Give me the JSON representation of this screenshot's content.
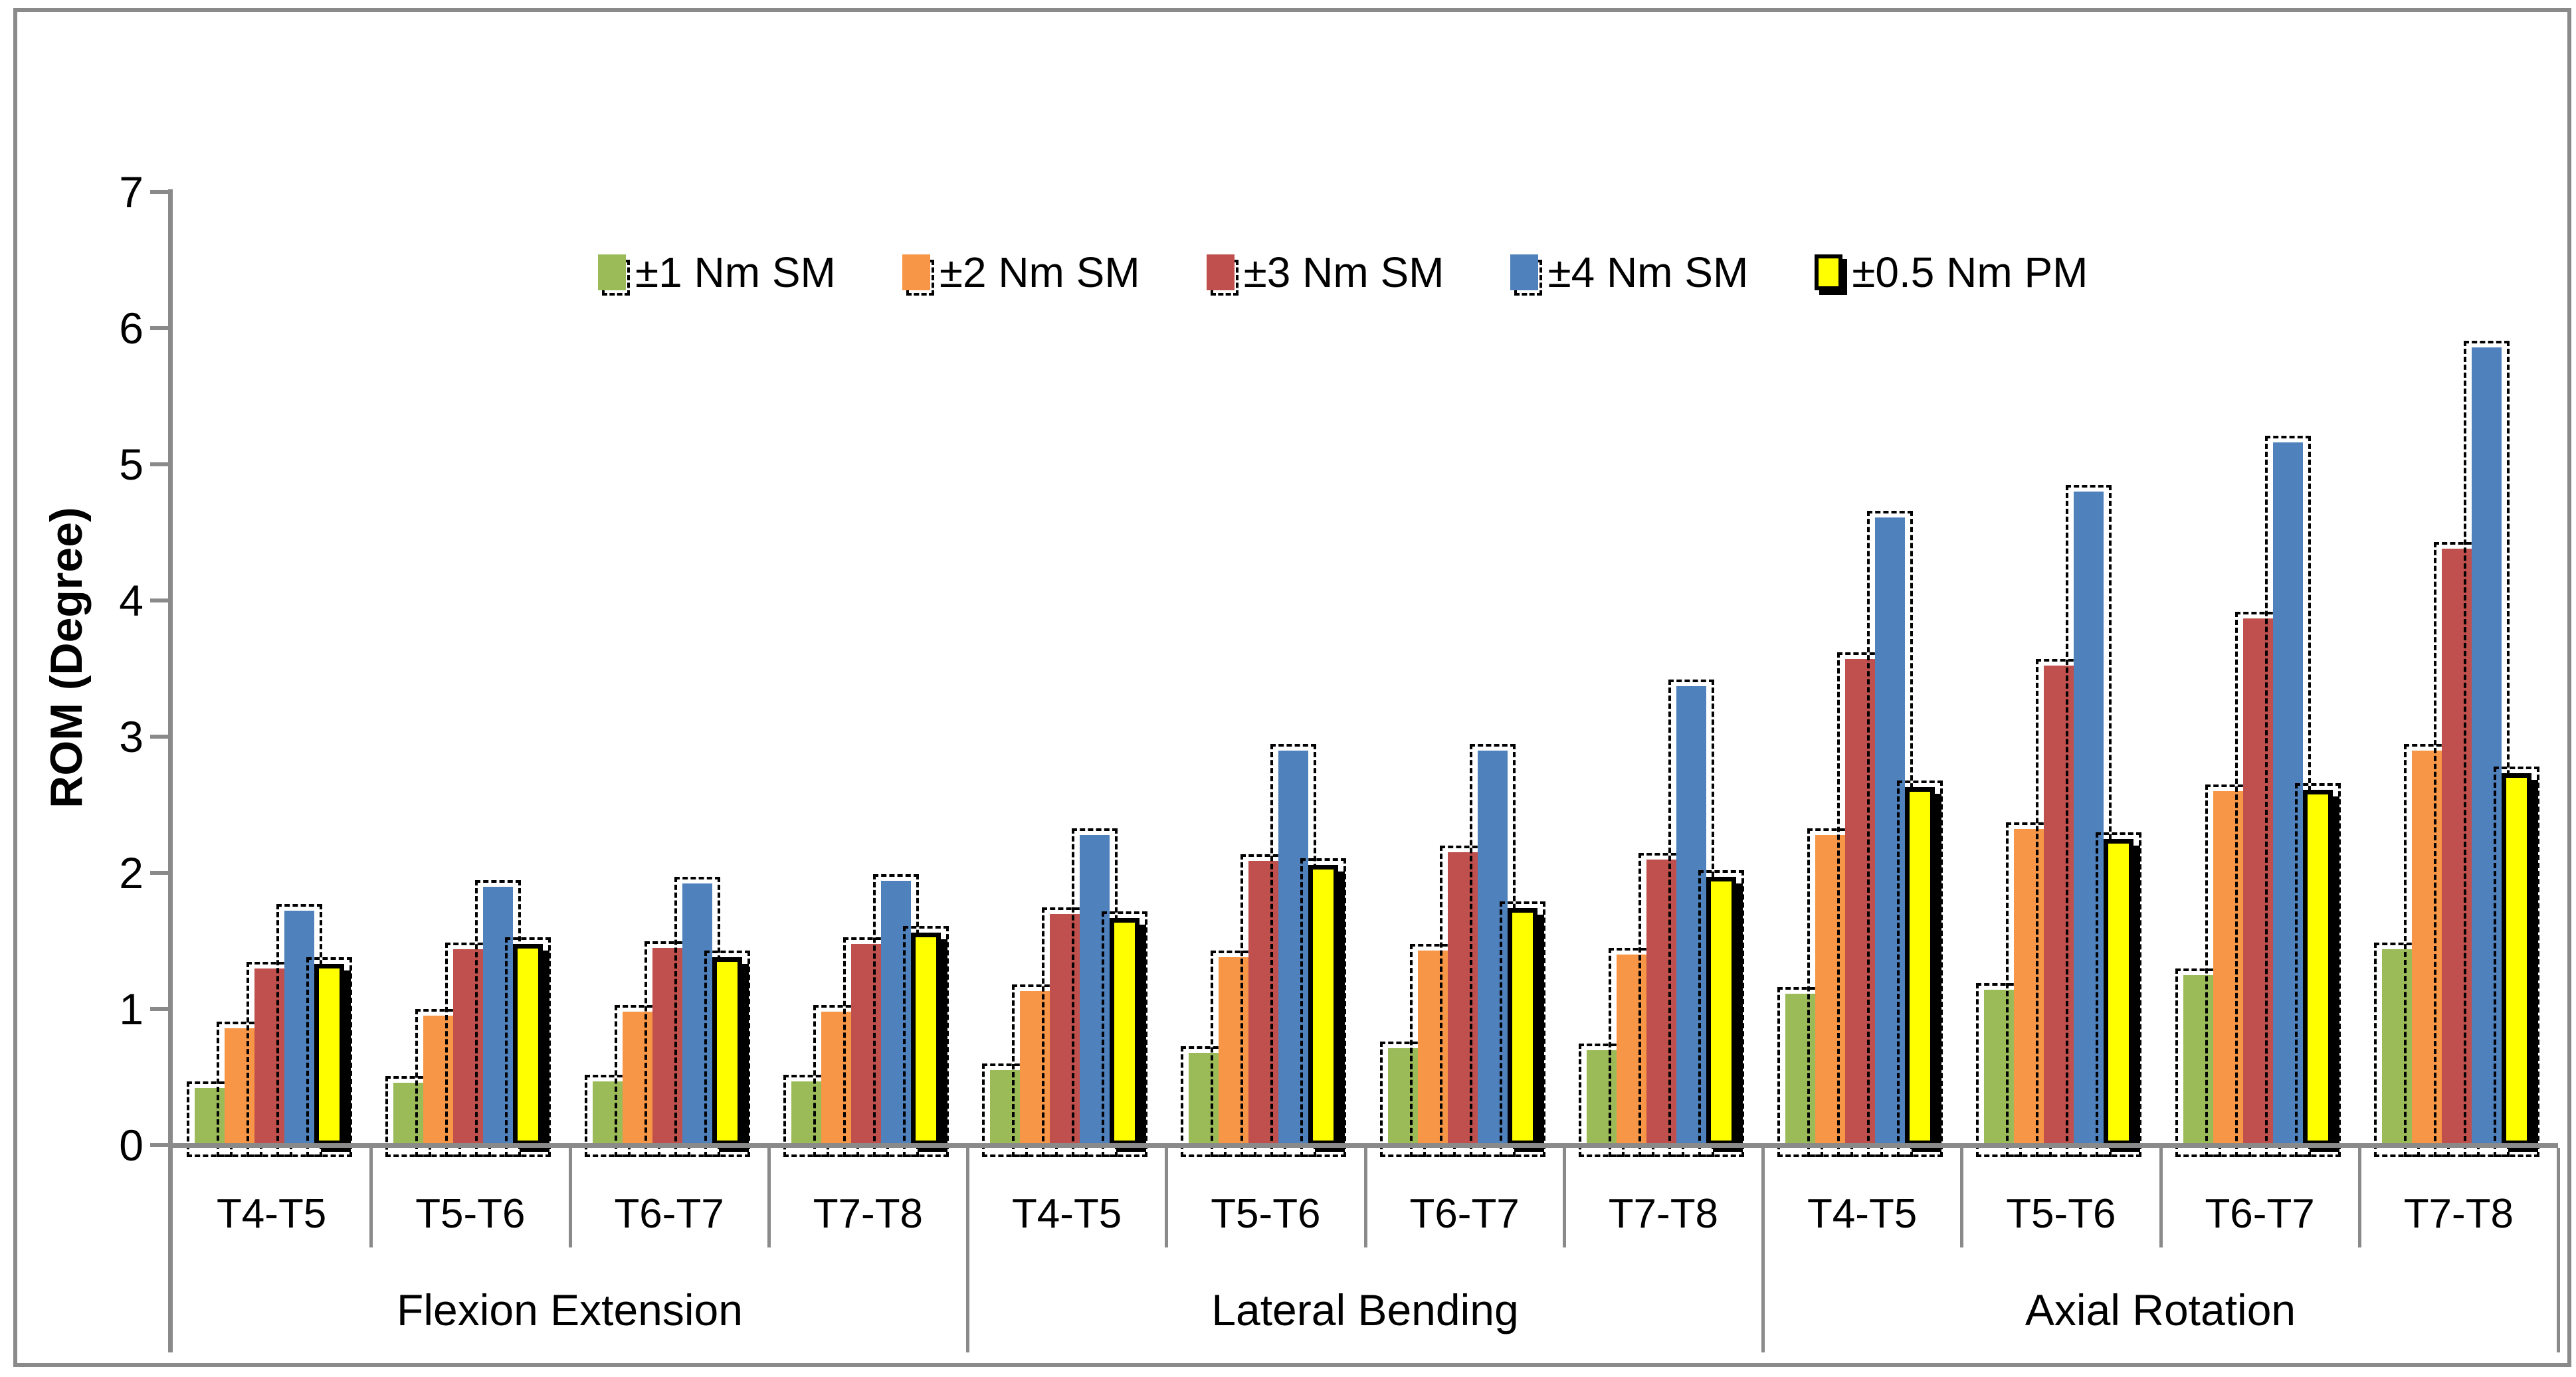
{
  "chart_data": {
    "type": "bar",
    "title": "",
    "ylabel": "ROM (Degree)",
    "ylim": [
      0,
      7
    ],
    "yticks": [
      0,
      1,
      2,
      3,
      4,
      5,
      6,
      7
    ],
    "grid": false,
    "legend_position": "top-center-inside",
    "categories": [
      "Flexion Extension",
      "Lateral Bending",
      "Axial Rotation"
    ],
    "spine_levels": [
      "T4-T5",
      "T5-T6",
      "T6-T7",
      "T7-T8"
    ],
    "series": [
      {
        "name": "±1 Nm SM",
        "color": "#9BBB59",
        "style": "dashed-shadow",
        "values": [
          0.42,
          0.46,
          0.47,
          0.47,
          0.55,
          0.68,
          0.71,
          0.7,
          1.11,
          1.14,
          1.25,
          1.44
        ]
      },
      {
        "name": "±2 Nm SM",
        "color": "#F79646",
        "style": "dashed-shadow",
        "values": [
          0.86,
          0.95,
          0.98,
          0.98,
          1.13,
          1.38,
          1.43,
          1.4,
          2.28,
          2.32,
          2.6,
          2.9
        ]
      },
      {
        "name": "±3 Nm SM",
        "color": "#C0504D",
        "style": "dashed-shadow",
        "values": [
          1.3,
          1.44,
          1.45,
          1.48,
          1.7,
          2.09,
          2.15,
          2.1,
          3.57,
          3.52,
          3.87,
          4.38
        ]
      },
      {
        "name": "±4 Nm SM",
        "color": "#4F81BD",
        "style": "dashed-shadow",
        "values": [
          1.72,
          1.9,
          1.92,
          1.94,
          2.28,
          2.9,
          2.9,
          3.37,
          4.61,
          4.8,
          5.16,
          5.86
        ]
      },
      {
        "name": "±0.5 Nm PM",
        "color": "#FFFF00",
        "style": "solid-border-shadow",
        "border_color": "#000000",
        "values": [
          1.33,
          1.48,
          1.38,
          1.56,
          1.67,
          2.06,
          1.74,
          1.97,
          2.63,
          2.25,
          2.61,
          2.73
        ]
      }
    ],
    "colors": {
      "axis": "#8a8a8a",
      "text": "#000000",
      "frame": "#8a8a8a"
    }
  }
}
